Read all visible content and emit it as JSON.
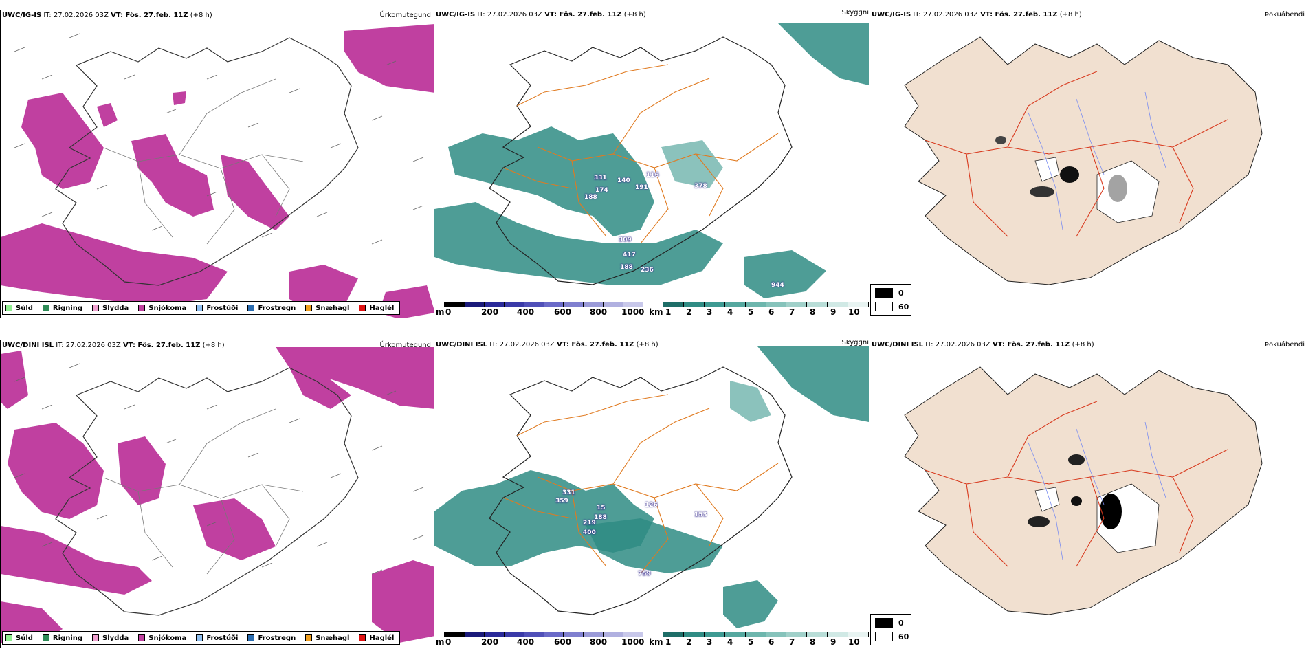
{
  "colors": {
    "precip_snow": "#c040a0",
    "cloud_teal": "#2f8c84",
    "roads": "#e07a20",
    "snowdepth_land": "#f1e0d0",
    "snowdepth_roads": "#d83a1e",
    "rivers": "#7a8cf0"
  },
  "rows": [
    {
      "model_label": "UWC/IG-IS",
      "it_text": "IT: 27.02.2026 03Z",
      "vt_label": "VT: Fös. 27.feb. 11Z",
      "lead_text": "(+8 h)",
      "panels": {
        "precip": {
          "title": "Úrkomutegund"
        },
        "cloud": {
          "title": "Skyggni",
          "peaks": [
            "331",
            "140",
            "116",
            "174",
            "191",
            "188",
            "378",
            "309",
            "417",
            "188",
            "236",
            "944"
          ]
        },
        "snow": {
          "title": "Þokuábendi"
        }
      }
    },
    {
      "model_label": "UWC/DINI ISL",
      "it_text": "IT: 27.02.2026 03Z",
      "vt_label": "VT: Fös. 27.feb. 11Z",
      "lead_text": "(+8 h)",
      "panels": {
        "precip": {
          "title": "Úrkomutegund"
        },
        "cloud": {
          "title": "Skyggni",
          "peaks": [
            "331",
            "359",
            "15",
            "126",
            "188",
            "219",
            "400",
            "153",
            "759"
          ]
        },
        "snow": {
          "title": "Þokuábendi"
        }
      }
    }
  ],
  "precip_legend": [
    {
      "label": "Súld",
      "color": "#90ee90"
    },
    {
      "label": "Rigning",
      "color": "#2e8b57"
    },
    {
      "label": "Slydda",
      "color": "#f0a0d0"
    },
    {
      "label": "Snjókoma",
      "color": "#c040a0"
    },
    {
      "label": "Frostúði",
      "color": "#90c0f0"
    },
    {
      "label": "Frostregn",
      "color": "#2a6cb0"
    },
    {
      "label": "Snæhagl",
      "color": "#f0a020"
    },
    {
      "label": "Haglél",
      "color": "#e01010"
    }
  ],
  "cloud_base_scale": {
    "unit": "m",
    "ticks": [
      "0",
      "200",
      "400",
      "600",
      "800",
      "1000"
    ],
    "colors": [
      "#000000",
      "#1a1a7a",
      "#2a2a9a",
      "#3a3aa8",
      "#5050b8",
      "#6a6ac8",
      "#8080d0",
      "#9a9ad8",
      "#b0b0e0",
      "#c8c8ea"
    ]
  },
  "visibility_scale": {
    "unit": "km",
    "ticks": [
      "1",
      "2",
      "3",
      "4",
      "5",
      "6",
      "7",
      "8",
      "9",
      "10"
    ],
    "colors": [
      "#1e6e68",
      "#2f8c84",
      "#3d9a92",
      "#55a89f",
      "#6db6ad",
      "#86c3bb",
      "#a0d0c9",
      "#b8ddd7",
      "#d0e9e5",
      "#e8f4f2"
    ]
  },
  "fog_legend": {
    "top": "0",
    "bottom": "60"
  }
}
